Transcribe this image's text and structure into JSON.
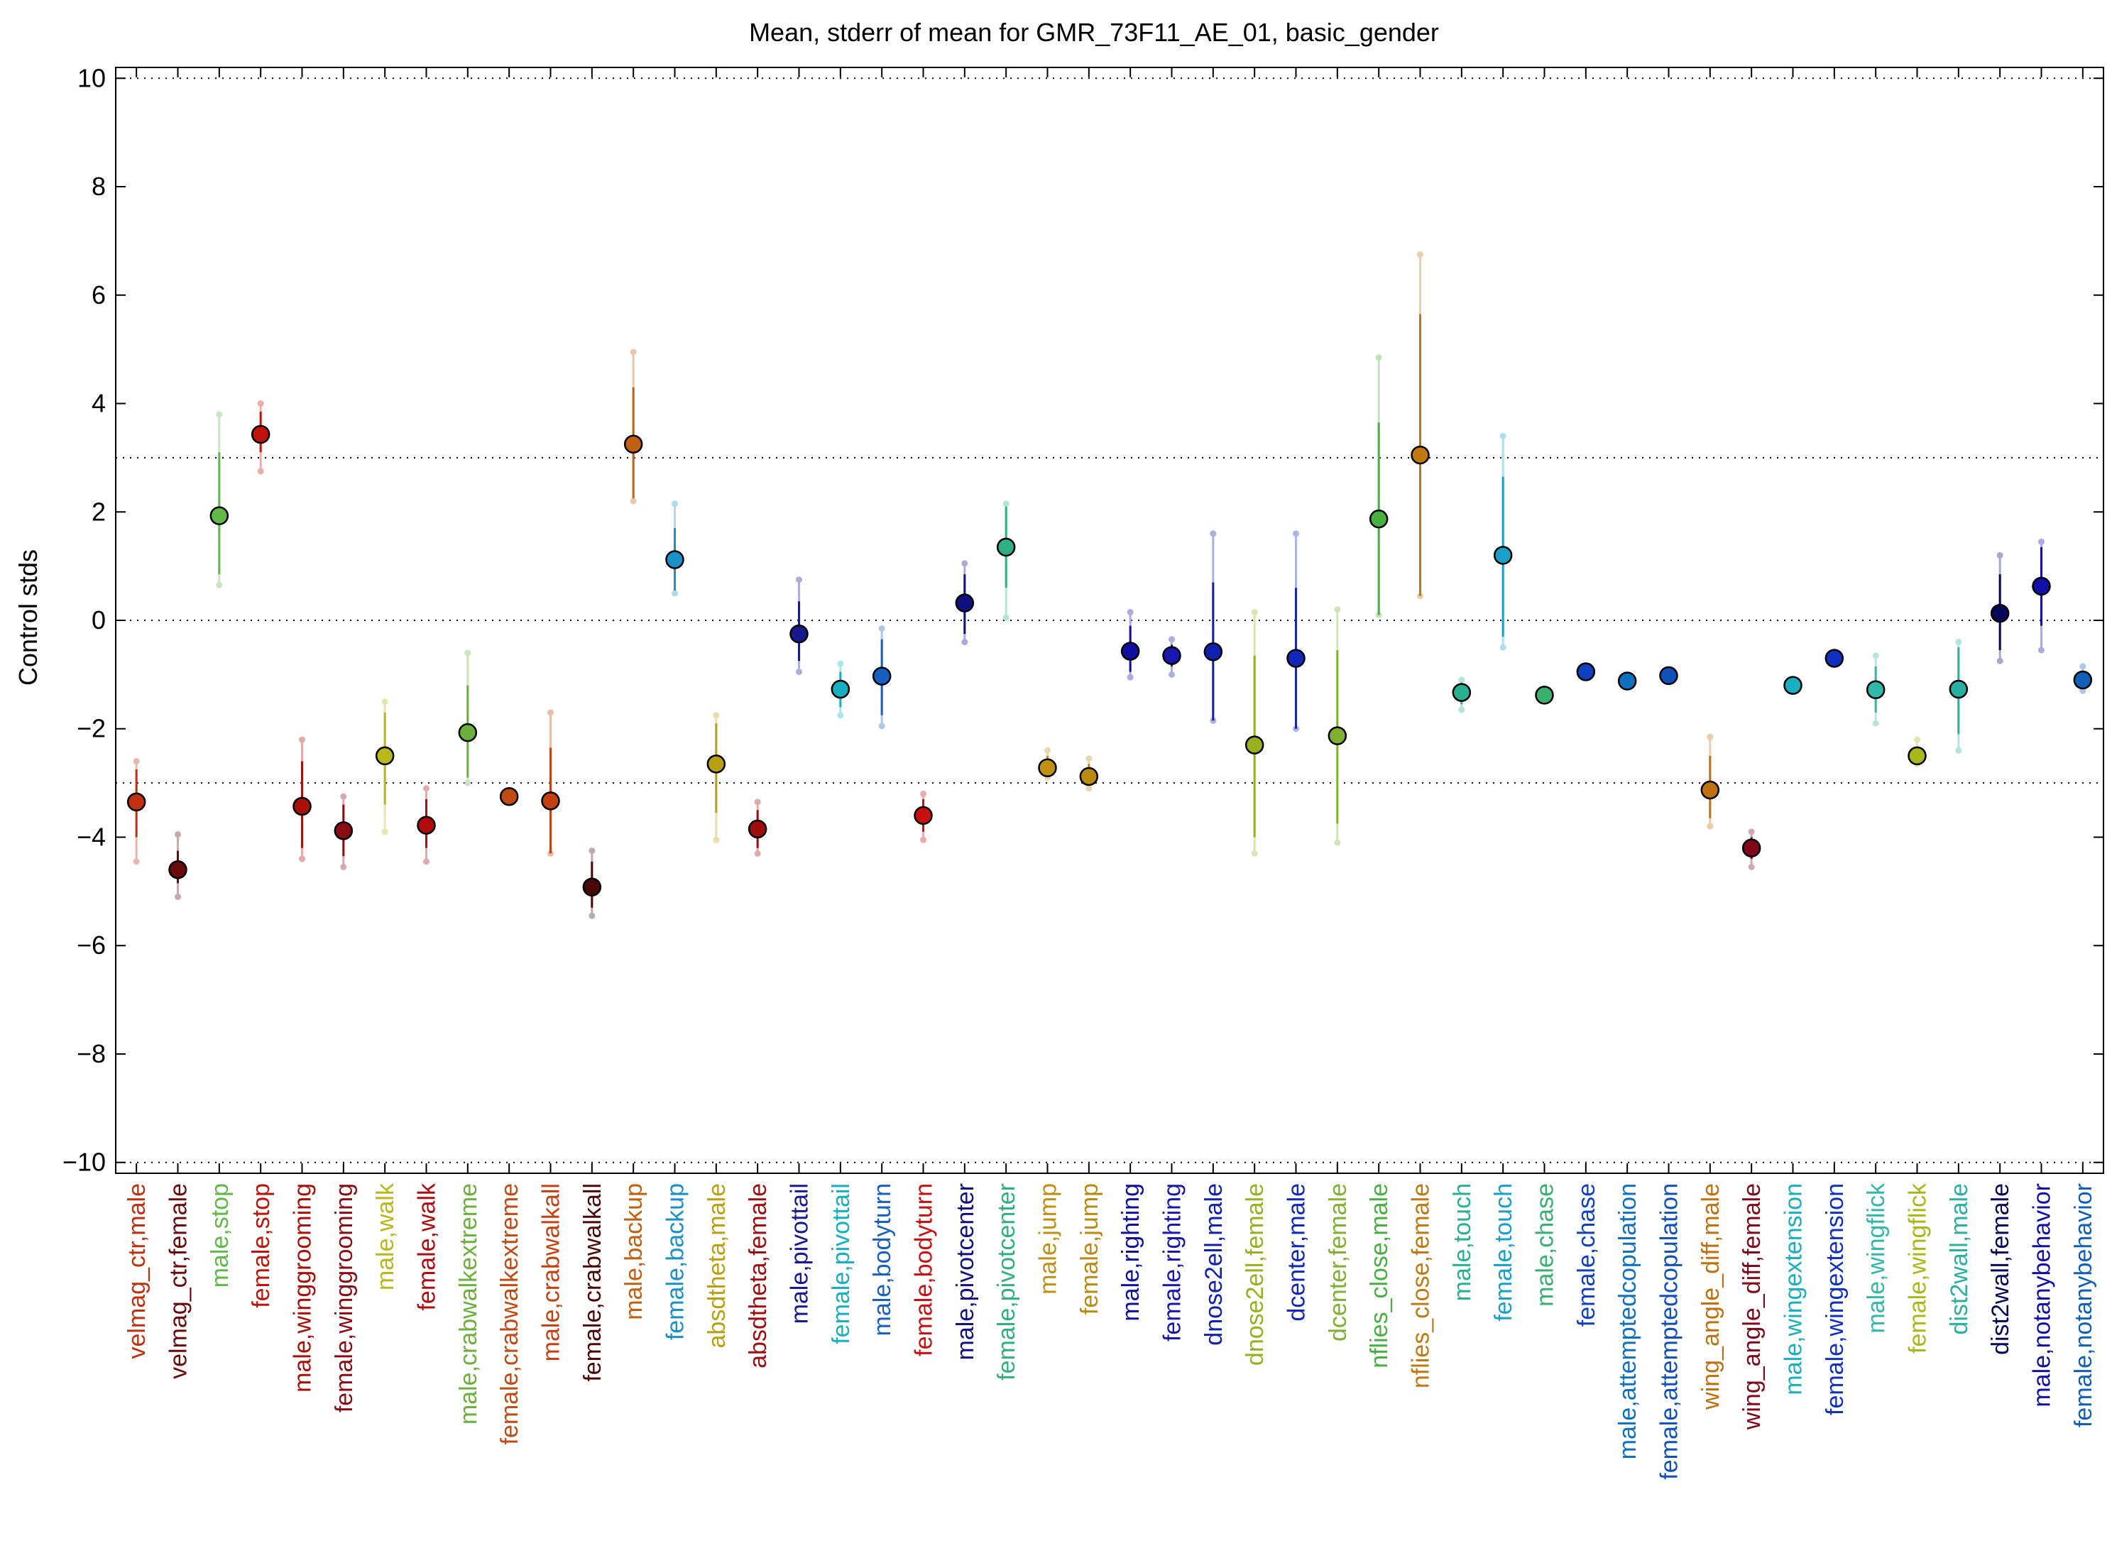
{
  "chart_data": {
    "type": "scatter",
    "title": "Mean, stderr of mean for GMR_73F11_AE_01, basic_gender",
    "xlabel": "",
    "ylabel": "Control stds",
    "ylim": [
      -10.2,
      10.2
    ],
    "yticks": [
      10,
      8,
      6,
      4,
      2,
      0,
      -2,
      -4,
      -6,
      -8,
      -10
    ],
    "ytick_labels": [
      "10",
      "8",
      "6",
      "4",
      "2",
      "0",
      "−2",
      "−4",
      "−6",
      "−8",
      "−10"
    ],
    "reference_lines": [
      10,
      3,
      0,
      -3,
      -10
    ],
    "grid": false,
    "legend": "none",
    "points": [
      {
        "label": "velmag_ctr,male",
        "mean": -3.35,
        "err_lo": -4.0,
        "err_hi": -2.75,
        "range_lo": -4.45,
        "range_hi": -2.6,
        "color": "#c03010"
      },
      {
        "label": "velmag_ctr,female",
        "mean": -4.6,
        "err_lo": -4.85,
        "err_hi": -4.25,
        "range_lo": -5.1,
        "range_hi": -3.95,
        "color": "#6a0a0a"
      },
      {
        "label": "male,stop",
        "mean": 1.93,
        "err_lo": 0.85,
        "err_hi": 3.1,
        "range_lo": 0.65,
        "range_hi": 3.8,
        "color": "#62b847"
      },
      {
        "label": "female,stop",
        "mean": 3.43,
        "err_lo": 3.1,
        "err_hi": 3.85,
        "range_lo": 2.75,
        "range_hi": 4.0,
        "color": "#c0140a"
      },
      {
        "label": "male,winggrooming",
        "mean": -3.43,
        "err_lo": -4.2,
        "err_hi": -2.6,
        "range_lo": -4.4,
        "range_hi": -2.2,
        "color": "#a81008"
      },
      {
        "label": "female,winggrooming",
        "mean": -3.88,
        "err_lo": -4.35,
        "err_hi": -3.4,
        "range_lo": -4.55,
        "range_hi": -3.25,
        "color": "#8a0c14"
      },
      {
        "label": "male,walk",
        "mean": -2.5,
        "err_lo": -3.4,
        "err_hi": -1.7,
        "range_lo": -3.9,
        "range_hi": -1.5,
        "color": "#b8b818"
      },
      {
        "label": "female,walk",
        "mean": -3.78,
        "err_lo": -4.2,
        "err_hi": -3.3,
        "range_lo": -4.45,
        "range_hi": -3.1,
        "color": "#b00c10"
      },
      {
        "label": "male,crabwalkextreme",
        "mean": -2.07,
        "err_lo": -2.9,
        "err_hi": -1.2,
        "range_lo": -3.0,
        "range_hi": -0.6,
        "color": "#6cb03c"
      },
      {
        "label": "female,crabwalkextreme",
        "mean": -3.25,
        "err_lo": -3.3,
        "err_hi": -3.2,
        "range_lo": -3.3,
        "range_hi": -3.2,
        "color": "#c04a14"
      },
      {
        "label": "male,crabwalkall",
        "mean": -3.33,
        "err_lo": -4.3,
        "err_hi": -2.35,
        "range_lo": -4.3,
        "range_hi": -1.7,
        "color": "#c44010"
      },
      {
        "label": "female,crabwalkall",
        "mean": -4.92,
        "err_lo": -5.3,
        "err_hi": -4.45,
        "range_lo": -5.45,
        "range_hi": -4.25,
        "color": "#4a0808"
      },
      {
        "label": "male,backup",
        "mean": 3.25,
        "err_lo": 2.25,
        "err_hi": 4.3,
        "range_lo": 2.2,
        "range_hi": 4.95,
        "color": "#c06010"
      },
      {
        "label": "female,backup",
        "mean": 1.12,
        "err_lo": 0.55,
        "err_hi": 1.7,
        "range_lo": 0.5,
        "range_hi": 2.15,
        "color": "#1890c8"
      },
      {
        "label": "absdtheta,male",
        "mean": -2.65,
        "err_lo": -3.55,
        "err_hi": -1.9,
        "range_lo": -4.05,
        "range_hi": -1.75,
        "color": "#b8a010"
      },
      {
        "label": "absdtheta,female",
        "mean": -3.85,
        "err_lo": -4.2,
        "err_hi": -3.5,
        "range_lo": -4.3,
        "range_hi": -3.35,
        "color": "#a00c10"
      },
      {
        "label": "male,pivottail",
        "mean": -0.25,
        "err_lo": -0.75,
        "err_hi": 0.35,
        "range_lo": -0.95,
        "range_hi": 0.75,
        "color": "#181890"
      },
      {
        "label": "female,pivottail",
        "mean": -1.27,
        "err_lo": -1.6,
        "err_hi": -0.95,
        "range_lo": -1.75,
        "range_hi": -0.8,
        "color": "#18b0c0"
      },
      {
        "label": "male,bodyturn",
        "mean": -1.03,
        "err_lo": -1.75,
        "err_hi": -0.35,
        "range_lo": -1.95,
        "range_hi": -0.15,
        "color": "#1860c0"
      },
      {
        "label": "female,bodyturn",
        "mean": -3.6,
        "err_lo": -3.9,
        "err_hi": -3.3,
        "range_lo": -4.05,
        "range_hi": -3.2,
        "color": "#c81010"
      },
      {
        "label": "male,pivotcenter",
        "mean": 0.32,
        "err_lo": -0.25,
        "err_hi": 0.85,
        "range_lo": -0.4,
        "range_hi": 1.05,
        "color": "#101080"
      },
      {
        "label": "female,pivotcenter",
        "mean": 1.35,
        "err_lo": 0.6,
        "err_hi": 2.1,
        "range_lo": 0.05,
        "range_hi": 2.15,
        "color": "#30b080"
      },
      {
        "label": "male,jump",
        "mean": -2.72,
        "err_lo": -2.85,
        "err_hi": -2.5,
        "range_lo": -2.9,
        "range_hi": -2.4,
        "color": "#c09010"
      },
      {
        "label": "female,jump",
        "mean": -2.88,
        "err_lo": -3.05,
        "err_hi": -2.65,
        "range_lo": -3.1,
        "range_hi": -2.55,
        "color": "#b88a10"
      },
      {
        "label": "male,righting",
        "mean": -0.57,
        "err_lo": -0.95,
        "err_hi": -0.1,
        "range_lo": -1.05,
        "range_hi": 0.15,
        "color": "#1010a0"
      },
      {
        "label": "female,righting",
        "mean": -0.65,
        "err_lo": -0.85,
        "err_hi": -0.45,
        "range_lo": -1.0,
        "range_hi": -0.35,
        "color": "#1818b0"
      },
      {
        "label": "dnose2ell,male",
        "mean": -0.58,
        "err_lo": -1.85,
        "err_hi": 0.7,
        "range_lo": -1.85,
        "range_hi": 1.6,
        "color": "#1020b0"
      },
      {
        "label": "dnose2ell,female",
        "mean": -2.3,
        "err_lo": -4.0,
        "err_hi": -0.65,
        "range_lo": -4.3,
        "range_hi": 0.15,
        "color": "#98b020"
      },
      {
        "label": "dcenter,male",
        "mean": -0.7,
        "err_lo": -2.0,
        "err_hi": 0.6,
        "range_lo": -2.0,
        "range_hi": 1.6,
        "color": "#1028b8"
      },
      {
        "label": "dcenter,female",
        "mean": -2.13,
        "err_lo": -3.75,
        "err_hi": -0.55,
        "range_lo": -4.1,
        "range_hi": 0.2,
        "color": "#80b030"
      },
      {
        "label": "nflies_close,male",
        "mean": 1.87,
        "err_lo": 0.1,
        "err_hi": 3.65,
        "range_lo": 0.1,
        "range_hi": 4.85,
        "color": "#48b040"
      },
      {
        "label": "nflies_close,female",
        "mean": 3.05,
        "err_lo": 0.45,
        "err_hi": 5.65,
        "range_lo": 0.45,
        "range_hi": 6.75,
        "color": "#c07810"
      },
      {
        "label": "male,touch",
        "mean": -1.33,
        "err_lo": -1.55,
        "err_hi": -1.15,
        "range_lo": -1.65,
        "range_hi": -1.1,
        "color": "#28b090"
      },
      {
        "label": "female,touch",
        "mean": 1.2,
        "err_lo": -0.3,
        "err_hi": 2.65,
        "range_lo": -0.5,
        "range_hi": 3.4,
        "color": "#18a0c8"
      },
      {
        "label": "male,chase",
        "mean": -1.38,
        "err_lo": -1.45,
        "err_hi": -1.3,
        "range_lo": -1.45,
        "range_hi": -1.3,
        "color": "#38b070"
      },
      {
        "label": "female,chase",
        "mean": -0.95,
        "err_lo": -1.0,
        "err_hi": -0.9,
        "range_lo": -1.0,
        "range_hi": -0.9,
        "color": "#1040c0"
      },
      {
        "label": "male,attemptedcopulation",
        "mean": -1.12,
        "err_lo": -1.17,
        "err_hi": -1.07,
        "range_lo": -1.17,
        "range_hi": -1.07,
        "color": "#1070c0"
      },
      {
        "label": "female,attemptedcopulation",
        "mean": -1.02,
        "err_lo": -1.07,
        "err_hi": -0.97,
        "range_lo": -1.07,
        "range_hi": -0.97,
        "color": "#1050b8"
      },
      {
        "label": "wing_angle_diff,male",
        "mean": -3.13,
        "err_lo": -3.65,
        "err_hi": -2.5,
        "range_lo": -3.8,
        "range_hi": -2.15,
        "color": "#c07010"
      },
      {
        "label": "wing_angle_diff,female",
        "mean": -4.2,
        "err_lo": -4.4,
        "err_hi": -4.0,
        "range_lo": -4.55,
        "range_hi": -3.9,
        "color": "#800818"
      },
      {
        "label": "male,wingextension",
        "mean": -1.2,
        "err_lo": -1.25,
        "err_hi": -1.15,
        "range_lo": -1.25,
        "range_hi": -1.15,
        "color": "#18b0c0"
      },
      {
        "label": "female,wingextension",
        "mean": -0.7,
        "err_lo": -0.75,
        "err_hi": -0.65,
        "range_lo": -0.75,
        "range_hi": -0.65,
        "color": "#1030c0"
      },
      {
        "label": "male,wingflick",
        "mean": -1.28,
        "err_lo": -1.7,
        "err_hi": -0.85,
        "range_lo": -1.9,
        "range_hi": -0.65,
        "color": "#30b8a8"
      },
      {
        "label": "female,wingflick",
        "mean": -2.5,
        "err_lo": -2.6,
        "err_hi": -2.35,
        "range_lo": -2.65,
        "range_hi": -2.2,
        "color": "#a8b818"
      },
      {
        "label": "dist2wall,male",
        "mean": -1.27,
        "err_lo": -2.1,
        "err_hi": -0.5,
        "range_lo": -2.4,
        "range_hi": -0.4,
        "color": "#28b0a0"
      },
      {
        "label": "dist2wall,female",
        "mean": 0.13,
        "err_lo": -0.55,
        "err_hi": 0.85,
        "range_lo": -0.75,
        "range_hi": 1.2,
        "color": "#080858"
      },
      {
        "label": "male,notanybehavior",
        "mean": 0.63,
        "err_lo": -0.1,
        "err_hi": 1.35,
        "range_lo": -0.55,
        "range_hi": 1.45,
        "color": "#1010a8"
      },
      {
        "label": "female,notanybehavior",
        "mean": -1.1,
        "err_lo": -1.25,
        "err_hi": -0.95,
        "range_lo": -1.3,
        "range_hi": -0.85,
        "color": "#1060b8"
      }
    ]
  }
}
